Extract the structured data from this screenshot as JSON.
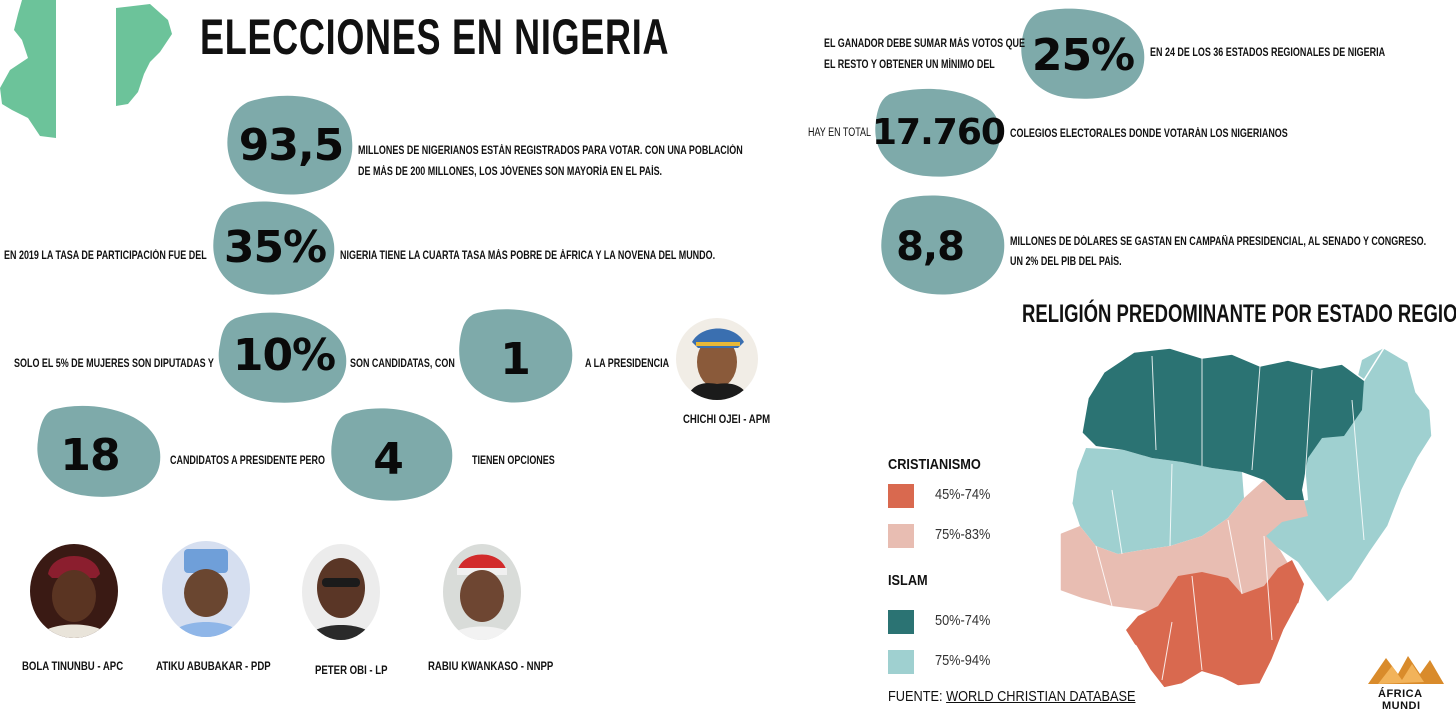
{
  "header": {
    "title": "ELECCIONES EN NIGERIA"
  },
  "colors": {
    "blob": "#7eaaaa",
    "flag_green": "#6cc39a",
    "christian_high": "#d9694f",
    "christian_low": "#e8bdb2",
    "islam_high": "#2b7373",
    "islam_low": "#9fd0d0",
    "brand": "#d98b2b"
  },
  "stats": {
    "voters": {
      "value": "93,5",
      "text1": "MILLONES DE NIGERIANOS ESTÁN REGISTRADOS PARA VOTAR. CON UNA POBLACIÓN",
      "text2": "DE MÁS DE 200 MILLONES, LOS JÓVENES SON MAYORÍA EN EL PAÍS."
    },
    "turnout": {
      "pre": "EN 2019 LA TASA DE PARTICIPACIÓN FUE DEL",
      "value": "35%",
      "post": "NIGERIA TIENE LA CUARTA TASA MÁS POBRE DE ÁFRICA Y LA NOVENA DEL MUNDO."
    },
    "women": {
      "pre": "SOLO EL 5% DE MUJERES SON DIPUTADAS Y",
      "value": "10%",
      "mid": "SON CANDIDATAS, CON",
      "value2": "1",
      "post": "A LA PRESIDENCIA"
    },
    "candidates": {
      "value": "18",
      "mid": "CANDIDATOS A PRESIDENTE PERO",
      "value2": "4",
      "post": "TIENEN OPCIONES"
    },
    "winner": {
      "pre1": "EL GANADOR DEBE SUMAR MÁS VOTOS QUE",
      "pre2": "EL RESTO Y OBTENER UN MÍNIMO DEL",
      "value": "25%",
      "post": "EN 24 DE LOS 36 ESTADOS REGIONALES DE NIGERIA"
    },
    "stations": {
      "pre": "HAY EN TOTAL",
      "value": "17.760",
      "post": "COLEGIOS ELECTORALES DONDE VOTARÁN LOS NIGERIANOS"
    },
    "spend": {
      "value": "8,8",
      "text1": "MILLONES DE DÓLARES SE GASTAN EN CAMPAÑA PRESIDENCIAL, AL SENADO Y CONGRESO.",
      "text2": "UN 2% DEL PIB DEL PAÍS."
    }
  },
  "featured_candidate": {
    "name": "CHICHI OJEI - APM"
  },
  "candidates": [
    {
      "name": "BOLA TINUNBU - APC"
    },
    {
      "name": "ATIKU ABUBAKAR - PDP"
    },
    {
      "name": "PETER OBI - LP"
    },
    {
      "name": "RABIU KWANKASO - NNPP"
    }
  ],
  "map": {
    "title": "RELIGIÓN PREDOMINANTE POR ESTADO REGIONAL",
    "legend": {
      "christian_title": "CRISTIANISMO",
      "christian_items": [
        "45%-74%",
        "75%-83%"
      ],
      "islam_title": "ISLAM",
      "islam_items": [
        "50%-74%",
        "75%-94%"
      ]
    },
    "source_label": "FUENTE:",
    "source_link": "WORLD CHRISTIAN DATABASE"
  },
  "brand": {
    "line1": "ÁFRICA",
    "line2": "MUNDI"
  }
}
